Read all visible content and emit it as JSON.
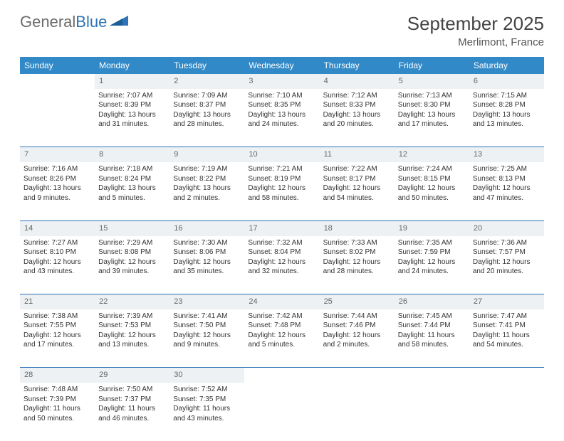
{
  "brand": {
    "part1": "General",
    "part2": "Blue"
  },
  "title": "September 2025",
  "location": "Merlimont, France",
  "accent_color": "#3289c7",
  "rule_color": "#2d73b6",
  "daynum_bg": "#eef1f3",
  "headers": [
    "Sunday",
    "Monday",
    "Tuesday",
    "Wednesday",
    "Thursday",
    "Friday",
    "Saturday"
  ],
  "weeks": [
    [
      {
        "day": "",
        "lines": []
      },
      {
        "day": "1",
        "lines": [
          "Sunrise: 7:07 AM",
          "Sunset: 8:39 PM",
          "Daylight: 13 hours",
          "and 31 minutes."
        ]
      },
      {
        "day": "2",
        "lines": [
          "Sunrise: 7:09 AM",
          "Sunset: 8:37 PM",
          "Daylight: 13 hours",
          "and 28 minutes."
        ]
      },
      {
        "day": "3",
        "lines": [
          "Sunrise: 7:10 AM",
          "Sunset: 8:35 PM",
          "Daylight: 13 hours",
          "and 24 minutes."
        ]
      },
      {
        "day": "4",
        "lines": [
          "Sunrise: 7:12 AM",
          "Sunset: 8:33 PM",
          "Daylight: 13 hours",
          "and 20 minutes."
        ]
      },
      {
        "day": "5",
        "lines": [
          "Sunrise: 7:13 AM",
          "Sunset: 8:30 PM",
          "Daylight: 13 hours",
          "and 17 minutes."
        ]
      },
      {
        "day": "6",
        "lines": [
          "Sunrise: 7:15 AM",
          "Sunset: 8:28 PM",
          "Daylight: 13 hours",
          "and 13 minutes."
        ]
      }
    ],
    [
      {
        "day": "7",
        "lines": [
          "Sunrise: 7:16 AM",
          "Sunset: 8:26 PM",
          "Daylight: 13 hours",
          "and 9 minutes."
        ]
      },
      {
        "day": "8",
        "lines": [
          "Sunrise: 7:18 AM",
          "Sunset: 8:24 PM",
          "Daylight: 13 hours",
          "and 5 minutes."
        ]
      },
      {
        "day": "9",
        "lines": [
          "Sunrise: 7:19 AM",
          "Sunset: 8:22 PM",
          "Daylight: 13 hours",
          "and 2 minutes."
        ]
      },
      {
        "day": "10",
        "lines": [
          "Sunrise: 7:21 AM",
          "Sunset: 8:19 PM",
          "Daylight: 12 hours",
          "and 58 minutes."
        ]
      },
      {
        "day": "11",
        "lines": [
          "Sunrise: 7:22 AM",
          "Sunset: 8:17 PM",
          "Daylight: 12 hours",
          "and 54 minutes."
        ]
      },
      {
        "day": "12",
        "lines": [
          "Sunrise: 7:24 AM",
          "Sunset: 8:15 PM",
          "Daylight: 12 hours",
          "and 50 minutes."
        ]
      },
      {
        "day": "13",
        "lines": [
          "Sunrise: 7:25 AM",
          "Sunset: 8:13 PM",
          "Daylight: 12 hours",
          "and 47 minutes."
        ]
      }
    ],
    [
      {
        "day": "14",
        "lines": [
          "Sunrise: 7:27 AM",
          "Sunset: 8:10 PM",
          "Daylight: 12 hours",
          "and 43 minutes."
        ]
      },
      {
        "day": "15",
        "lines": [
          "Sunrise: 7:29 AM",
          "Sunset: 8:08 PM",
          "Daylight: 12 hours",
          "and 39 minutes."
        ]
      },
      {
        "day": "16",
        "lines": [
          "Sunrise: 7:30 AM",
          "Sunset: 8:06 PM",
          "Daylight: 12 hours",
          "and 35 minutes."
        ]
      },
      {
        "day": "17",
        "lines": [
          "Sunrise: 7:32 AM",
          "Sunset: 8:04 PM",
          "Daylight: 12 hours",
          "and 32 minutes."
        ]
      },
      {
        "day": "18",
        "lines": [
          "Sunrise: 7:33 AM",
          "Sunset: 8:02 PM",
          "Daylight: 12 hours",
          "and 28 minutes."
        ]
      },
      {
        "day": "19",
        "lines": [
          "Sunrise: 7:35 AM",
          "Sunset: 7:59 PM",
          "Daylight: 12 hours",
          "and 24 minutes."
        ]
      },
      {
        "day": "20",
        "lines": [
          "Sunrise: 7:36 AM",
          "Sunset: 7:57 PM",
          "Daylight: 12 hours",
          "and 20 minutes."
        ]
      }
    ],
    [
      {
        "day": "21",
        "lines": [
          "Sunrise: 7:38 AM",
          "Sunset: 7:55 PM",
          "Daylight: 12 hours",
          "and 17 minutes."
        ]
      },
      {
        "day": "22",
        "lines": [
          "Sunrise: 7:39 AM",
          "Sunset: 7:53 PM",
          "Daylight: 12 hours",
          "and 13 minutes."
        ]
      },
      {
        "day": "23",
        "lines": [
          "Sunrise: 7:41 AM",
          "Sunset: 7:50 PM",
          "Daylight: 12 hours",
          "and 9 minutes."
        ]
      },
      {
        "day": "24",
        "lines": [
          "Sunrise: 7:42 AM",
          "Sunset: 7:48 PM",
          "Daylight: 12 hours",
          "and 5 minutes."
        ]
      },
      {
        "day": "25",
        "lines": [
          "Sunrise: 7:44 AM",
          "Sunset: 7:46 PM",
          "Daylight: 12 hours",
          "and 2 minutes."
        ]
      },
      {
        "day": "26",
        "lines": [
          "Sunrise: 7:45 AM",
          "Sunset: 7:44 PM",
          "Daylight: 11 hours",
          "and 58 minutes."
        ]
      },
      {
        "day": "27",
        "lines": [
          "Sunrise: 7:47 AM",
          "Sunset: 7:41 PM",
          "Daylight: 11 hours",
          "and 54 minutes."
        ]
      }
    ],
    [
      {
        "day": "28",
        "lines": [
          "Sunrise: 7:48 AM",
          "Sunset: 7:39 PM",
          "Daylight: 11 hours",
          "and 50 minutes."
        ]
      },
      {
        "day": "29",
        "lines": [
          "Sunrise: 7:50 AM",
          "Sunset: 7:37 PM",
          "Daylight: 11 hours",
          "and 46 minutes."
        ]
      },
      {
        "day": "30",
        "lines": [
          "Sunrise: 7:52 AM",
          "Sunset: 7:35 PM",
          "Daylight: 11 hours",
          "and 43 minutes."
        ]
      },
      {
        "day": "",
        "lines": []
      },
      {
        "day": "",
        "lines": []
      },
      {
        "day": "",
        "lines": []
      },
      {
        "day": "",
        "lines": []
      }
    ]
  ]
}
